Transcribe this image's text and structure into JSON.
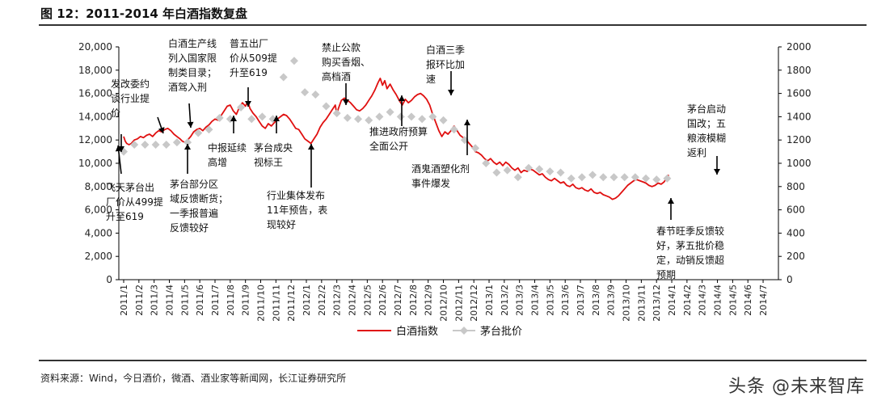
{
  "header": {
    "title": "图 12：2011-2014 年白酒指数复盘"
  },
  "footer": {
    "source": "资料来源：Wind，今日酒价，微酒、酒业家等新闻网，长江证券研究所",
    "watermark": "头条 @未来智库"
  },
  "chart_data": {
    "type": "line",
    "title": "2011-2014 年白酒指数复盘",
    "categories": [
      "2011/1",
      "2011/2",
      "2011/3",
      "2011/4",
      "2011/5",
      "2011/6",
      "2011/7",
      "2011/8",
      "2011/9",
      "2011/10",
      "2011/11",
      "2011/12",
      "2012/1",
      "2012/2",
      "2012/3",
      "2012/4",
      "2012/5",
      "2012/6",
      "2012/7",
      "2012/8",
      "2012/9",
      "2012/10",
      "2012/11",
      "2012/12",
      "2013/1",
      "2013/2",
      "2013/3",
      "2013/4",
      "2013/5",
      "2013/6",
      "2013/7",
      "2013/8",
      "2013/9",
      "2013/10",
      "2013/11",
      "2013/12",
      "2014/1",
      "2014/2",
      "2014/3",
      "2014/4",
      "2014/5",
      "2014/6",
      "2014/7"
    ],
    "y_left": {
      "ylim": [
        0,
        20000
      ],
      "ticks": [
        "0",
        "2,000",
        "4,000",
        "6,000",
        "8,000",
        "10,000",
        "12,000",
        "14,000",
        "16,000",
        "18,000",
        "20,000"
      ]
    },
    "y_right": {
      "ylim": [
        0,
        2000
      ],
      "ticks": [
        "0",
        "200",
        "400",
        "600",
        "800",
        "1000",
        "1200",
        "1400",
        "1600",
        "1800",
        "2000"
      ]
    },
    "series": [
      {
        "name": "白酒指数",
        "axis": "left",
        "color": "#e01010",
        "points": [
          [
            0.0,
            12300
          ],
          [
            0.1,
            11900
          ],
          [
            0.2,
            11700
          ],
          [
            0.35,
            11600
          ],
          [
            0.5,
            11700
          ],
          [
            0.7,
            12000
          ],
          [
            0.9,
            12100
          ],
          [
            1.1,
            12300
          ],
          [
            1.3,
            12200
          ],
          [
            1.5,
            12400
          ],
          [
            1.7,
            12500
          ],
          [
            1.9,
            12300
          ],
          [
            2.1,
            12600
          ],
          [
            2.3,
            12800
          ],
          [
            2.5,
            12700
          ],
          [
            2.7,
            12900
          ],
          [
            2.9,
            13000
          ],
          [
            3.1,
            12800
          ],
          [
            3.3,
            12500
          ],
          [
            3.5,
            12300
          ],
          [
            3.7,
            12100
          ],
          [
            3.85,
            11900
          ],
          [
            4.0,
            11800
          ],
          [
            4.2,
            12000
          ],
          [
            4.4,
            12300
          ],
          [
            4.6,
            12700
          ],
          [
            4.8,
            12900
          ],
          [
            5.0,
            13000
          ],
          [
            5.2,
            12800
          ],
          [
            5.4,
            13100
          ],
          [
            5.6,
            13300
          ],
          [
            5.8,
            13600
          ],
          [
            6.0,
            13800
          ],
          [
            6.2,
            13700
          ],
          [
            6.4,
            14100
          ],
          [
            6.6,
            14500
          ],
          [
            6.8,
            14900
          ],
          [
            7.0,
            15000
          ],
          [
            7.2,
            14500
          ],
          [
            7.4,
            14200
          ],
          [
            7.6,
            14800
          ],
          [
            7.8,
            15200
          ],
          [
            8.0,
            14900
          ],
          [
            8.15,
            15300
          ],
          [
            8.3,
            14700
          ],
          [
            8.5,
            14300
          ],
          [
            8.7,
            14000
          ],
          [
            8.9,
            13600
          ],
          [
            9.1,
            13200
          ],
          [
            9.3,
            13000
          ],
          [
            9.5,
            13400
          ],
          [
            9.7,
            13200
          ],
          [
            9.9,
            13500
          ],
          [
            10.1,
            13800
          ],
          [
            10.3,
            14000
          ],
          [
            10.5,
            14200
          ],
          [
            10.7,
            14100
          ],
          [
            10.9,
            13800
          ],
          [
            11.1,
            13400
          ],
          [
            11.3,
            13000
          ],
          [
            11.5,
            12900
          ],
          [
            11.7,
            12500
          ],
          [
            11.9,
            12100
          ],
          [
            12.1,
            11900
          ],
          [
            12.3,
            11700
          ],
          [
            12.5,
            12100
          ],
          [
            12.7,
            12500
          ],
          [
            12.9,
            13100
          ],
          [
            13.1,
            13500
          ],
          [
            13.3,
            13800
          ],
          [
            13.5,
            14200
          ],
          [
            13.7,
            14600
          ],
          [
            13.9,
            15000
          ],
          [
            14.0,
            14200
          ],
          [
            14.1,
            14700
          ],
          [
            14.3,
            15400
          ],
          [
            14.5,
            15600
          ],
          [
            14.7,
            15400
          ],
          [
            14.9,
            15200
          ],
          [
            15.1,
            14900
          ],
          [
            15.3,
            14600
          ],
          [
            15.5,
            14500
          ],
          [
            15.7,
            14700
          ],
          [
            15.9,
            15000
          ],
          [
            16.1,
            15400
          ],
          [
            16.3,
            15800
          ],
          [
            16.5,
            16300
          ],
          [
            16.7,
            16900
          ],
          [
            16.85,
            17300
          ],
          [
            17.0,
            16700
          ],
          [
            17.15,
            17100
          ],
          [
            17.3,
            16400
          ],
          [
            17.5,
            16800
          ],
          [
            17.7,
            16300
          ],
          [
            17.9,
            15900
          ],
          [
            18.1,
            15400
          ],
          [
            18.3,
            15000
          ],
          [
            18.5,
            15500
          ],
          [
            18.7,
            15200
          ],
          [
            18.9,
            15400
          ],
          [
            19.1,
            15700
          ],
          [
            19.3,
            15900
          ],
          [
            19.5,
            16000
          ],
          [
            19.7,
            15800
          ],
          [
            19.9,
            15500
          ],
          [
            20.1,
            15000
          ],
          [
            20.3,
            14200
          ],
          [
            20.5,
            13500
          ],
          [
            20.7,
            12800
          ],
          [
            20.9,
            12300
          ],
          [
            21.1,
            12700
          ],
          [
            21.3,
            12500
          ],
          [
            21.5,
            12800
          ],
          [
            21.7,
            13200
          ],
          [
            21.9,
            12800
          ],
          [
            22.1,
            12400
          ],
          [
            22.3,
            12200
          ],
          [
            22.5,
            12000
          ],
          [
            22.7,
            11700
          ],
          [
            22.9,
            11400
          ],
          [
            23.1,
            11000
          ],
          [
            23.3,
            10900
          ],
          [
            23.5,
            10700
          ],
          [
            23.7,
            10400
          ],
          [
            23.9,
            10200
          ],
          [
            24.1,
            10400
          ],
          [
            24.3,
            10100
          ],
          [
            24.5,
            9900
          ],
          [
            24.7,
            10100
          ],
          [
            24.9,
            9800
          ],
          [
            25.1,
            10100
          ],
          [
            25.3,
            9900
          ],
          [
            25.5,
            9600
          ],
          [
            25.7,
            9400
          ],
          [
            25.9,
            9600
          ],
          [
            26.1,
            9200
          ],
          [
            26.3,
            9400
          ],
          [
            26.5,
            9300
          ],
          [
            26.7,
            9500
          ],
          [
            26.9,
            9400
          ],
          [
            27.1,
            9200
          ],
          [
            27.3,
            9000
          ],
          [
            27.5,
            9100
          ],
          [
            27.7,
            8800
          ],
          [
            27.9,
            8600
          ],
          [
            28.1,
            8500
          ],
          [
            28.3,
            8700
          ],
          [
            28.5,
            8500
          ],
          [
            28.7,
            8300
          ],
          [
            28.9,
            8400
          ],
          [
            29.1,
            8100
          ],
          [
            29.3,
            8000
          ],
          [
            29.5,
            8200
          ],
          [
            29.7,
            7900
          ],
          [
            29.9,
            7800
          ],
          [
            30.1,
            7900
          ],
          [
            30.3,
            7700
          ],
          [
            30.5,
            7600
          ],
          [
            30.7,
            7800
          ],
          [
            30.9,
            7500
          ],
          [
            31.1,
            7400
          ],
          [
            31.3,
            7500
          ],
          [
            31.5,
            7300
          ],
          [
            31.7,
            7200
          ],
          [
            31.9,
            7100
          ],
          [
            32.1,
            6900
          ],
          [
            32.3,
            7000
          ],
          [
            32.5,
            7200
          ],
          [
            32.7,
            7500
          ],
          [
            32.9,
            7800
          ],
          [
            33.1,
            8100
          ],
          [
            33.3,
            8300
          ],
          [
            33.5,
            8500
          ],
          [
            33.7,
            8600
          ],
          [
            33.9,
            8500
          ],
          [
            34.1,
            8400
          ],
          [
            34.3,
            8300
          ],
          [
            34.5,
            8100
          ],
          [
            34.7,
            8000
          ],
          [
            34.9,
            8100
          ],
          [
            35.1,
            8300
          ],
          [
            35.3,
            8200
          ],
          [
            35.5,
            8400
          ],
          [
            35.7,
            8800
          ],
          [
            35.8,
            9000
          ]
        ]
      },
      {
        "name": "茅台批价",
        "axis": "right",
        "color": "#c8c8c8",
        "points": [
          [
            0.0,
            1100
          ],
          [
            0.7,
            1160
          ],
          [
            1.4,
            1160
          ],
          [
            2.1,
            1160
          ],
          [
            2.8,
            1160
          ],
          [
            3.5,
            1180
          ],
          [
            4.2,
            1180
          ],
          [
            4.9,
            1260
          ],
          [
            5.6,
            1290
          ],
          [
            6.3,
            1390
          ],
          [
            7.0,
            1380
          ],
          [
            7.7,
            1480
          ],
          [
            8.4,
            1380
          ],
          [
            9.1,
            1400
          ],
          [
            9.8,
            1380
          ],
          [
            10.5,
            1740
          ],
          [
            11.2,
            1880
          ],
          [
            11.9,
            1610
          ],
          [
            12.6,
            1590
          ],
          [
            13.3,
            1490
          ],
          [
            14.0,
            1430
          ],
          [
            14.7,
            1390
          ],
          [
            15.4,
            1380
          ],
          [
            16.1,
            1370
          ],
          [
            16.8,
            1400
          ],
          [
            17.5,
            1440
          ],
          [
            18.2,
            1400
          ],
          [
            18.9,
            1400
          ],
          [
            19.6,
            1380
          ],
          [
            20.3,
            1400
          ],
          [
            21.0,
            1370
          ],
          [
            21.7,
            1290
          ],
          [
            22.4,
            1200
          ],
          [
            23.1,
            1130
          ],
          [
            23.8,
            1000
          ],
          [
            24.5,
            920
          ],
          [
            25.2,
            940
          ],
          [
            25.9,
            880
          ],
          [
            26.6,
            960
          ],
          [
            27.3,
            950
          ],
          [
            28.0,
            930
          ],
          [
            28.7,
            920
          ],
          [
            29.4,
            870
          ],
          [
            30.1,
            880
          ],
          [
            30.8,
            900
          ],
          [
            31.5,
            880
          ],
          [
            32.2,
            880
          ],
          [
            32.9,
            880
          ],
          [
            33.6,
            880
          ],
          [
            34.3,
            870
          ],
          [
            35.0,
            860
          ],
          [
            35.7,
            870
          ]
        ]
      }
    ],
    "legend": [
      "白酒指数",
      "茅台批价"
    ],
    "annotations": [
      {
        "id": "a1",
        "lines": [
          "发改委约",
          "谈行业提",
          "价"
        ]
      },
      {
        "id": "a2",
        "lines": [
          "白酒生产线",
          "列入国家限",
          "制类目录；",
          "酒驾入刑"
        ]
      },
      {
        "id": "a3",
        "lines": [
          "普五出厂",
          "价从509提",
          "升至619"
        ]
      },
      {
        "id": "a4",
        "lines": [
          "禁止公款",
          "购买香烟、",
          "高档酒"
        ]
      },
      {
        "id": "a5",
        "lines": [
          "白酒三季",
          "报环比加",
          "速"
        ]
      },
      {
        "id": "a6",
        "lines": [
          "茅台启动",
          "国改；五",
          "粮液模糊",
          "返利"
        ]
      },
      {
        "id": "a7",
        "lines": [
          "中报延续",
          "高增"
        ]
      },
      {
        "id": "a8",
        "lines": [
          "茅台成央",
          "视标王"
        ]
      },
      {
        "id": "a9",
        "lines": [
          "推进政府预算",
          "全面公开"
        ]
      },
      {
        "id": "a10",
        "lines": [
          "酒鬼酒塑化剂",
          "事件爆发"
        ]
      },
      {
        "id": "a11",
        "lines": [
          "飞天茅台出",
          "厂价从499提",
          "升至619"
        ]
      },
      {
        "id": "a12",
        "lines": [
          "茅台部分区",
          "域反馈断货；",
          "一季报普遍",
          "反馈较好"
        ]
      },
      {
        "id": "a13",
        "lines": [
          "行业集体发布",
          "11年预告，表",
          "现较好"
        ]
      },
      {
        "id": "a14",
        "lines": [
          "春节旺季反馈较",
          "好，茅五批价稳",
          "定，动销反馈超",
          "预期"
        ]
      }
    ]
  }
}
